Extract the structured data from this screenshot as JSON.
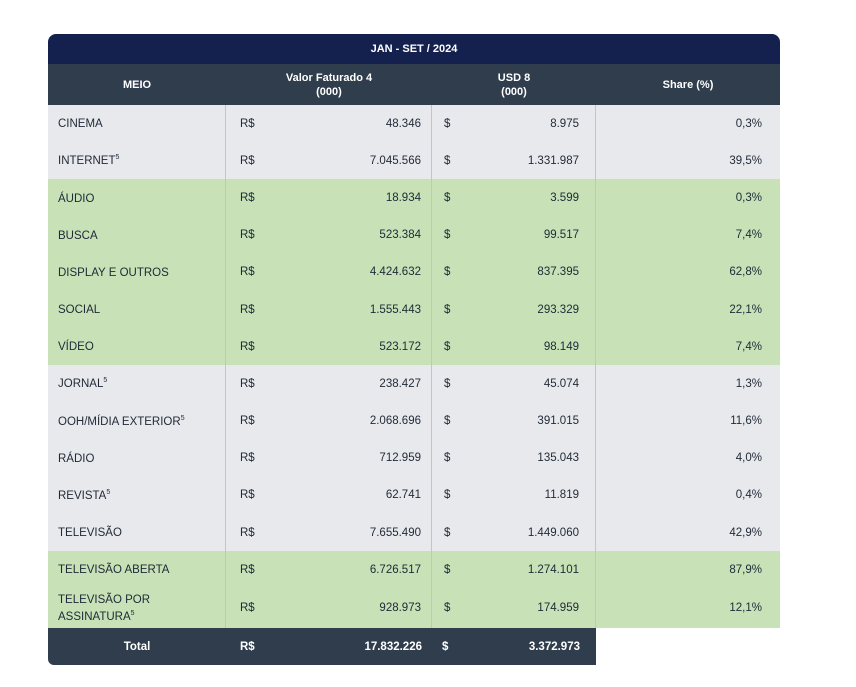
{
  "period": "JAN - SET / 2024",
  "headers": {
    "meio": "MEIO",
    "valor_line1": "Valor Faturado 4",
    "valor_line2": "(000)",
    "usd_line1": "USD 8",
    "usd_line2": "(000)",
    "share": "Share (%)"
  },
  "rows": [
    {
      "meio": "CINEMA",
      "sup": "",
      "cur_brl": "R$",
      "brl": "48.346",
      "cur_usd": "$",
      "usd": "8.975",
      "share": "0,3%",
      "band": "gray"
    },
    {
      "meio": "INTERNET",
      "sup": "5",
      "cur_brl": "R$",
      "brl": "7.045.566",
      "cur_usd": "$",
      "usd": "1.331.987",
      "share": "39,5%",
      "band": "gray"
    },
    {
      "meio": "ÁUDIO",
      "sup": "",
      "cur_brl": "R$",
      "brl": "18.934",
      "cur_usd": "$",
      "usd": "3.599",
      "share": "0,3%",
      "band": "green"
    },
    {
      "meio": "BUSCA",
      "sup": "",
      "cur_brl": "R$",
      "brl": "523.384",
      "cur_usd": "$",
      "usd": "99.517",
      "share": "7,4%",
      "band": "green"
    },
    {
      "meio": "DISPLAY E OUTROS",
      "sup": "",
      "cur_brl": "R$",
      "brl": "4.424.632",
      "cur_usd": "$",
      "usd": "837.395",
      "share": "62,8%",
      "band": "green"
    },
    {
      "meio": "SOCIAL",
      "sup": "",
      "cur_brl": "R$",
      "brl": "1.555.443",
      "cur_usd": "$",
      "usd": "293.329",
      "share": "22,1%",
      "band": "green"
    },
    {
      "meio": "VÍDEO",
      "sup": "",
      "cur_brl": "R$",
      "brl": "523.172",
      "cur_usd": "$",
      "usd": "98.149",
      "share": "7,4%",
      "band": "green"
    },
    {
      "meio": "JORNAL",
      "sup": "5",
      "cur_brl": "R$",
      "brl": "238.427",
      "cur_usd": "$",
      "usd": "45.074",
      "share": "1,3%",
      "band": "gray"
    },
    {
      "meio": "OOH/MÍDIA EXTERIOR",
      "sup": "5",
      "cur_brl": "R$",
      "brl": "2.068.696",
      "cur_usd": "$",
      "usd": "391.015",
      "share": "11,6%",
      "band": "gray"
    },
    {
      "meio": "RÁDIO",
      "sup": "",
      "cur_brl": "R$",
      "brl": "712.959",
      "cur_usd": "$",
      "usd": "135.043",
      "share": "4,0%",
      "band": "gray"
    },
    {
      "meio": "REVISTA",
      "sup": "5",
      "cur_brl": "R$",
      "brl": "62.741",
      "cur_usd": "$",
      "usd": "11.819",
      "share": "0,4%",
      "band": "gray"
    },
    {
      "meio": "TELEVISÃO",
      "sup": "",
      "cur_brl": "R$",
      "brl": "7.655.490",
      "cur_usd": "$",
      "usd": "1.449.060",
      "share": "42,9%",
      "band": "gray"
    },
    {
      "meio": "TELEVISÃO ABERTA",
      "sup": "",
      "cur_brl": "R$",
      "brl": "6.726.517",
      "cur_usd": "$",
      "usd": "1.274.101",
      "share": "87,9%",
      "band": "green"
    },
    {
      "meio": "TELEVISÃO POR ASSINATURA",
      "sup": "5",
      "cur_brl": "R$",
      "brl": "928.973",
      "cur_usd": "$",
      "usd": "174.959",
      "share": "12,1%",
      "band": "green"
    }
  ],
  "total": {
    "label": "Total",
    "cur_brl": "R$",
    "brl": "17.832.226",
    "cur_usd": "$",
    "usd": "3.372.973"
  }
}
